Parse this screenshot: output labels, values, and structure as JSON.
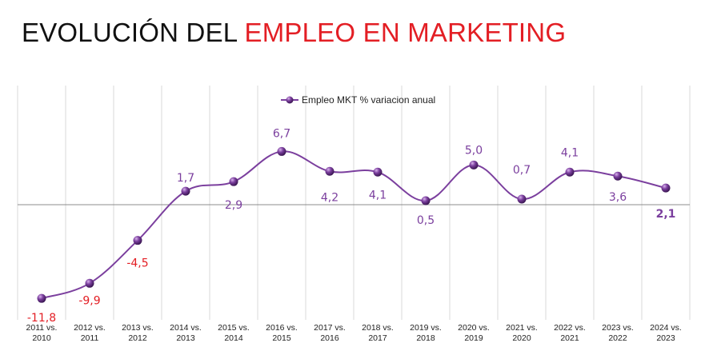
{
  "title": {
    "part1": "EVOLUCIÓN DEL",
    "part2": "EMPLEO EN MARKETING"
  },
  "colors": {
    "series": "#7b3f9e",
    "negative_label": "#e31e24",
    "positive_label": "#7b3f9e",
    "title_accent": "#e31e24"
  },
  "chart_data": {
    "type": "line",
    "title": "EVOLUCIÓN DEL EMPLEO EN MARKETING",
    "xlabel": "",
    "ylabel": "",
    "categories": [
      [
        "2011 vs.",
        "2010"
      ],
      [
        "2012 vs.",
        "2011"
      ],
      [
        "2013 vs.",
        "2012"
      ],
      [
        "2014 vs.",
        "2013"
      ],
      [
        "2015 vs.",
        "2014"
      ],
      [
        "2016 vs.",
        "2015"
      ],
      [
        "2017 vs.",
        "2016"
      ],
      [
        "2018 vs.",
        "2017"
      ],
      [
        "2019 vs.",
        "2018"
      ],
      [
        "2020 vs.",
        "2019"
      ],
      [
        "2021 vs.",
        "2020"
      ],
      [
        "2022 vs.",
        "2021"
      ],
      [
        "2023 vs.",
        "2022"
      ],
      [
        "2024 vs.",
        "2023"
      ]
    ],
    "series": [
      {
        "name": "Empleo MKT % variacion anual",
        "values": [
          -11.8,
          -9.9,
          -4.5,
          1.7,
          2.9,
          6.7,
          4.2,
          4.1,
          0.5,
          5.0,
          0.7,
          4.1,
          3.6,
          2.1
        ],
        "labels": [
          "-11,8",
          "-9,9",
          "-4,5",
          "1,7",
          "2,9",
          "6,7",
          "4,2",
          "4,1",
          "0,5",
          "5,0",
          "0,7",
          "4,1",
          "3,6",
          "2,1"
        ]
      }
    ],
    "ylim": [
      -14.5,
      15
    ],
    "grid": "vertical",
    "legend": "top-center"
  }
}
